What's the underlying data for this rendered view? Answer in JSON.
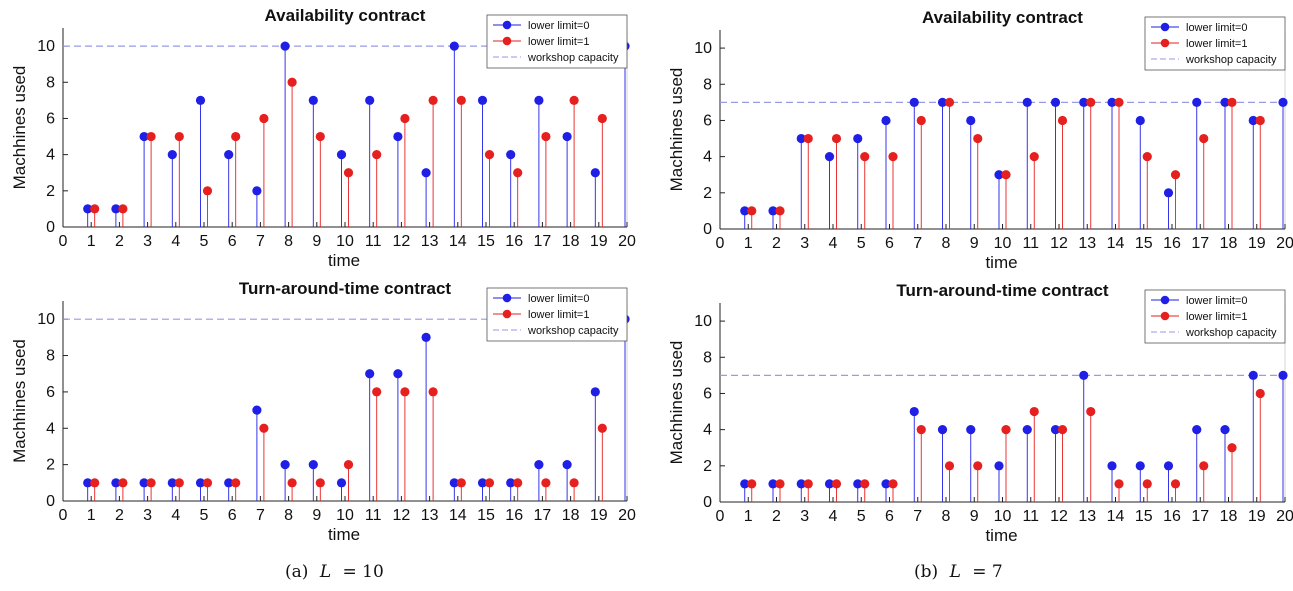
{
  "figure": {
    "captions": [
      {
        "label": "(a)",
        "var": "L",
        "eq": "= 10"
      },
      {
        "label": "(b)",
        "var": "L",
        "eq": "= 7"
      }
    ]
  },
  "colors": {
    "series0": "#1f1fe6",
    "series1": "#e61f1f",
    "capacity": "#9a9ae6",
    "axis": "#222222"
  },
  "chart_data": [
    {
      "type": "stem",
      "title": "Availability contract",
      "xlabel": "time",
      "ylabel": "Machhines used",
      "xlim": [
        0,
        20
      ],
      "ylim": [
        0,
        11
      ],
      "xticks": [
        0,
        1,
        2,
        3,
        4,
        5,
        6,
        7,
        8,
        9,
        10,
        11,
        12,
        13,
        14,
        15,
        16,
        17,
        18,
        19,
        20
      ],
      "yticks": [
        0,
        2,
        4,
        6,
        8,
        10
      ],
      "legend": "top-right",
      "x": [
        1,
        2,
        3,
        4,
        5,
        6,
        7,
        8,
        9,
        10,
        11,
        12,
        13,
        14,
        15,
        16,
        17,
        18,
        19,
        20
      ],
      "series": [
        {
          "name": "lower limit=0",
          "values": [
            1,
            1,
            5,
            4,
            7,
            4,
            2,
            10,
            7,
            4,
            7,
            5,
            3,
            10,
            7,
            4,
            7,
            5,
            3,
            10
          ]
        },
        {
          "name": "lower limit=1",
          "values": [
            1,
            1,
            5,
            5,
            2,
            5,
            6,
            8,
            5,
            3,
            4,
            6,
            7,
            7,
            4,
            3,
            5,
            7,
            6,
            null
          ]
        }
      ],
      "capacity": {
        "name": "workshop capacity",
        "value": 10
      }
    },
    {
      "type": "stem",
      "title": "Turn-around-time contract",
      "xlabel": "time",
      "ylabel": "Machhines used",
      "xlim": [
        0,
        20
      ],
      "ylim": [
        0,
        11
      ],
      "xticks": [
        0,
        1,
        2,
        3,
        4,
        5,
        6,
        7,
        8,
        9,
        10,
        11,
        12,
        13,
        14,
        15,
        16,
        17,
        18,
        19,
        20
      ],
      "yticks": [
        0,
        2,
        4,
        6,
        8,
        10
      ],
      "legend": "top-right",
      "x": [
        1,
        2,
        3,
        4,
        5,
        6,
        7,
        8,
        9,
        10,
        11,
        12,
        13,
        14,
        15,
        16,
        17,
        18,
        19,
        20
      ],
      "series": [
        {
          "name": "lower limit=0",
          "values": [
            1,
            1,
            1,
            1,
            1,
            1,
            5,
            2,
            2,
            1,
            7,
            7,
            9,
            1,
            1,
            1,
            2,
            2,
            6,
            10
          ]
        },
        {
          "name": "lower limit=1",
          "values": [
            1,
            1,
            1,
            1,
            1,
            1,
            4,
            1,
            1,
            2,
            6,
            6,
            6,
            1,
            1,
            1,
            1,
            1,
            4,
            null
          ]
        }
      ],
      "capacity": {
        "name": "workshop capacity",
        "value": 10
      }
    },
    {
      "type": "stem",
      "title": "Availability contract",
      "xlabel": "time",
      "ylabel": "Machhines used",
      "xlim": [
        0,
        20
      ],
      "ylim": [
        0,
        11
      ],
      "xticks": [
        0,
        1,
        2,
        3,
        4,
        5,
        6,
        7,
        8,
        9,
        10,
        11,
        12,
        13,
        14,
        15,
        16,
        17,
        18,
        19,
        20
      ],
      "yticks": [
        0,
        2,
        4,
        6,
        8,
        10
      ],
      "legend": "top-right",
      "x": [
        1,
        2,
        3,
        4,
        5,
        6,
        7,
        8,
        9,
        10,
        11,
        12,
        13,
        14,
        15,
        16,
        17,
        18,
        19,
        20
      ],
      "series": [
        {
          "name": "lower limit=0",
          "values": [
            1,
            1,
            5,
            4,
            5,
            6,
            7,
            7,
            6,
            3,
            7,
            7,
            7,
            7,
            6,
            2,
            7,
            7,
            6,
            7
          ]
        },
        {
          "name": "lower limit=1",
          "values": [
            1,
            1,
            5,
            5,
            4,
            4,
            6,
            7,
            5,
            3,
            4,
            6,
            7,
            7,
            4,
            3,
            5,
            7,
            6,
            null
          ]
        }
      ],
      "capacity": {
        "name": "workshop capacity",
        "value": 7
      }
    },
    {
      "type": "stem",
      "title": "Turn-around-time contract",
      "xlabel": "time",
      "ylabel": "Machhines used",
      "xlim": [
        0,
        20
      ],
      "ylim": [
        0,
        11
      ],
      "xticks": [
        0,
        1,
        2,
        3,
        4,
        5,
        6,
        7,
        8,
        9,
        10,
        11,
        12,
        13,
        14,
        15,
        16,
        17,
        18,
        19,
        20
      ],
      "yticks": [
        0,
        2,
        4,
        6,
        8,
        10
      ],
      "legend": "top-right",
      "x": [
        1,
        2,
        3,
        4,
        5,
        6,
        7,
        8,
        9,
        10,
        11,
        12,
        13,
        14,
        15,
        16,
        17,
        18,
        19,
        20
      ],
      "series": [
        {
          "name": "lower limit=0",
          "values": [
            1,
            1,
            1,
            1,
            1,
            1,
            5,
            4,
            4,
            2,
            4,
            4,
            7,
            2,
            2,
            2,
            4,
            4,
            7,
            7
          ]
        },
        {
          "name": "lower limit=1",
          "values": [
            1,
            1,
            1,
            1,
            1,
            1,
            4,
            2,
            2,
            4,
            5,
            4,
            5,
            1,
            1,
            1,
            2,
            3,
            6,
            null
          ]
        }
      ],
      "capacity": {
        "name": "workshop capacity",
        "value": 7
      }
    }
  ]
}
